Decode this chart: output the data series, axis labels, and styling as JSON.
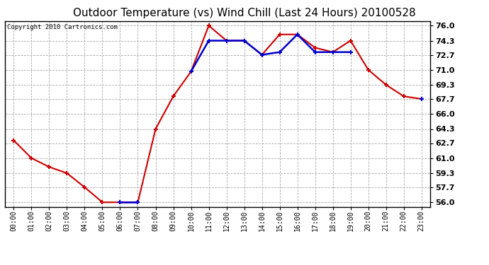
{
  "title": "Outdoor Temperature (vs) Wind Chill (Last 24 Hours) 20100528",
  "copyright": "Copyright 2010 Cartronics.com",
  "hours": [
    "00:00",
    "01:00",
    "02:00",
    "03:00",
    "04:00",
    "05:00",
    "06:00",
    "07:00",
    "08:00",
    "09:00",
    "10:00",
    "11:00",
    "12:00",
    "13:00",
    "14:00",
    "15:00",
    "16:00",
    "17:00",
    "18:00",
    "19:00",
    "20:00",
    "21:00",
    "22:00",
    "23:00"
  ],
  "temp": [
    63.0,
    61.0,
    60.0,
    59.3,
    57.7,
    56.0,
    56.0,
    56.0,
    64.3,
    68.0,
    70.8,
    76.0,
    74.3,
    74.3,
    72.7,
    75.0,
    75.0,
    73.5,
    73.0,
    74.3,
    71.0,
    69.3,
    68.0,
    67.7
  ],
  "windchill": [
    null,
    null,
    null,
    null,
    null,
    null,
    56.0,
    56.0,
    null,
    null,
    70.8,
    74.3,
    74.3,
    74.3,
    72.7,
    73.0,
    75.0,
    73.0,
    73.0,
    73.0,
    null,
    null,
    null,
    67.7
  ],
  "temp_color": "#cc0000",
  "windchill_color": "#0000cc",
  "bg_color": "#ffffff",
  "plot_bg_color": "#ffffff",
  "grid_color": "#aaaaaa",
  "yticks": [
    56.0,
    57.7,
    59.3,
    61.0,
    62.7,
    64.3,
    66.0,
    67.7,
    69.3,
    71.0,
    72.7,
    74.3,
    76.0
  ],
  "ylim": [
    55.5,
    76.5
  ],
  "title_fontsize": 11,
  "copyright_fontsize": 6.5
}
